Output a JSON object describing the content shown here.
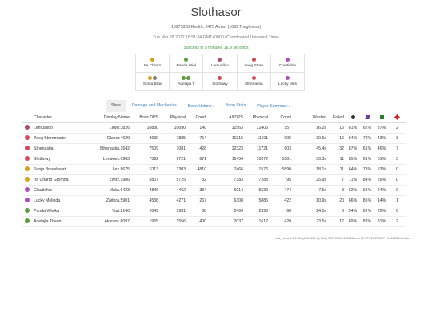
{
  "page": {
    "title": "Slothasor",
    "stats_line": "18973828 Health, 2473 Armor (1099 Toughness)",
    "time_line": "Tue Mar 28 2017 16:51:04 GMT+0000 (Coordinated Universal Time)",
    "success_line": "Success in 5 minutes 16.9 seconds"
  },
  "squad": [
    [
      {
        "name": "Ira Charro",
        "icons": [
          "#d4a017"
        ]
      },
      {
        "name": "Panda Wiel",
        "icons": [
          "#5b9b3a"
        ]
      },
      {
        "name": "Lemualldo",
        "icons": [
          "#b04a6f"
        ]
      },
      {
        "name": "Zeeg Store",
        "icons": [
          "#d04a5a"
        ]
      },
      {
        "name": "Clautishia",
        "icons": [
          "#b04ac0"
        ]
      }
    ],
    [
      {
        "name": "Sonja Brav",
        "icons": [
          "#d4a017",
          "#7a7a7a"
        ]
      },
      {
        "name": "Adelajla T",
        "icons": [
          "#5b9b3a",
          "#5b9b3a"
        ]
      },
      {
        "name": "Slothowy",
        "icons": [
          "#d04a5a"
        ]
      },
      {
        "name": "Sthenastia",
        "icons": [
          "#d04a5a"
        ]
      },
      {
        "name": "Lucky Meli",
        "icons": [
          "#b04ac0"
        ]
      }
    ]
  ],
  "tabs": [
    {
      "label": "Stats",
      "active": true,
      "dropdown": false
    },
    {
      "label": "Damage and Mechanics",
      "active": false,
      "dropdown": false
    },
    {
      "label": "Boon Uptime",
      "active": false,
      "dropdown": true
    },
    {
      "label": "Boon Stats",
      "active": false,
      "dropdown": false
    },
    {
      "label": "Player Summary",
      "active": false,
      "dropdown": true
    }
  ],
  "table": {
    "headers": {
      "character": "Character",
      "display_name": "Display Name",
      "boss_dps": "Boss DPS",
      "physical": "Physical",
      "condi": "Condi",
      "all_dps": "All DPS",
      "physical2": "Physical",
      "condi2": "Condi",
      "wasted": "Wasted",
      "failed": "Failed"
    },
    "header_icons": [
      {
        "name": "scholar-icon",
        "color": "#333333"
      },
      {
        "name": "fury-icon",
        "color": "#6a3fa0"
      },
      {
        "name": "might-icon",
        "color": "#2e7d32"
      },
      {
        "name": "heart-icon",
        "color": "#c62828"
      }
    ],
    "rows": [
      {
        "icon": "#b04a6f",
        "character": "Lemualldo",
        "display": "LeMy.3826",
        "boss_dps": "10830",
        "physical": "10690",
        "condi": "140",
        "all_dps": "12563",
        "physical2": "12406",
        "condi2": "157",
        "wasted": "16.2s",
        "failed": "15",
        "p1": "81%",
        "p2": "62%",
        "p3": "87%",
        "p4": "2"
      },
      {
        "icon": "#d04a5a",
        "character": "Zeeg Storemaster",
        "display": "Glaber.4629",
        "boss_dps": "8639",
        "physical": "7885",
        "condi": "754",
        "all_dps": "11915",
        "physical2": "11011",
        "condi2": "905",
        "wasted": "30.6s",
        "failed": "16",
        "p1": "84%",
        "p2": "72%",
        "p3": "43%",
        "p4": "3"
      },
      {
        "icon": "#d04a5a",
        "character": "Sthenastia",
        "display": "Sthenastia.3642",
        "boss_dps": "7509",
        "physical": "7081",
        "condi": "428",
        "all_dps": "12323",
        "physical2": "11721",
        "condi2": "603",
        "wasted": "45.4s",
        "failed": "32",
        "p1": "87%",
        "p2": "61%",
        "p3": "46%",
        "p4": "7"
      },
      {
        "icon": "#d04a5a",
        "character": "Slothowy",
        "display": "Leniwiec.6983",
        "boss_dps": "7392",
        "physical": "6721",
        "condi": "671",
        "all_dps": "11454",
        "physical2": "10372",
        "condi2": "1081",
        "wasted": "36.3s",
        "failed": "11",
        "p1": "85%",
        "p2": "61%",
        "p3": "51%",
        "p4": "3"
      },
      {
        "icon": "#d4a017",
        "character": "Sonja Braveheart",
        "display": "Lex.8675",
        "boss_dps": "6113",
        "physical": "1303",
        "condi": "4810",
        "all_dps": "7466",
        "physical2": "1576",
        "condi2": "5890",
        "wasted": "18.1s",
        "failed": "11",
        "p1": "64%",
        "p2": "73%",
        "p3": "53%",
        "p4": "0"
      },
      {
        "icon": "#d4a017",
        "character": "Ira Charro Gromna",
        "display": "Zwirz.1986",
        "boss_dps": "5807",
        "physical": "5725",
        "condi": "82",
        "all_dps": "7383",
        "physical2": "7288",
        "condi2": "95",
        "wasted": "25.9s",
        "failed": "7",
        "p1": "71%",
        "p2": "84%",
        "p3": "29%",
        "p4": "0"
      },
      {
        "icon": "#b04ac0",
        "character": "Clautishia",
        "display": "Maks.6423",
        "boss_dps": "4846",
        "physical": "4462",
        "condi": "384",
        "all_dps": "6014",
        "physical2": "5539",
        "condi2": "474",
        "wasted": "7.5s",
        "failed": "3",
        "p1": "62%",
        "p2": "95%",
        "p3": "24%",
        "p4": "0"
      },
      {
        "icon": "#b04ac0",
        "character": "Lucky Melinda",
        "display": "Zaithra.5901",
        "boss_dps": "4538",
        "physical": "4271",
        "condi": "267",
        "all_dps": "6308",
        "physical2": "5886",
        "condi2": "422",
        "wasted": "10.9s",
        "failed": "20",
        "p1": "66%",
        "p2": "85%",
        "p3": "14%",
        "p4": "1"
      },
      {
        "icon": "#5b9b3a",
        "character": "Panda Wielka",
        "display": "Yuri.2140",
        "boss_dps": "2049",
        "physical": "1981",
        "condi": "68",
        "all_dps": "2464",
        "physical2": "2396",
        "condi2": "68",
        "wasted": "24.5s",
        "failed": "6",
        "p1": "54%",
        "p2": "82%",
        "p3": "22%",
        "p4": "0"
      },
      {
        "icon": "#5b9b3a",
        "character": "Adelajla Thenn",
        "display": "Akyrass.6097",
        "boss_dps": "1955",
        "physical": "1556",
        "condi": "400",
        "all_dps": "2037",
        "physical2": "1617",
        "condi2": "420",
        "wasted": "23.5s",
        "failed": "17",
        "p1": "69%",
        "p2": "82%",
        "p3": "31%",
        "p4": "2"
      }
    ]
  },
  "footer": "raid_heroes 1.1.11-g3613467 by Mui | 20170328-165625.evtc | EVTC20170327 | 1612303c3ef8a"
}
